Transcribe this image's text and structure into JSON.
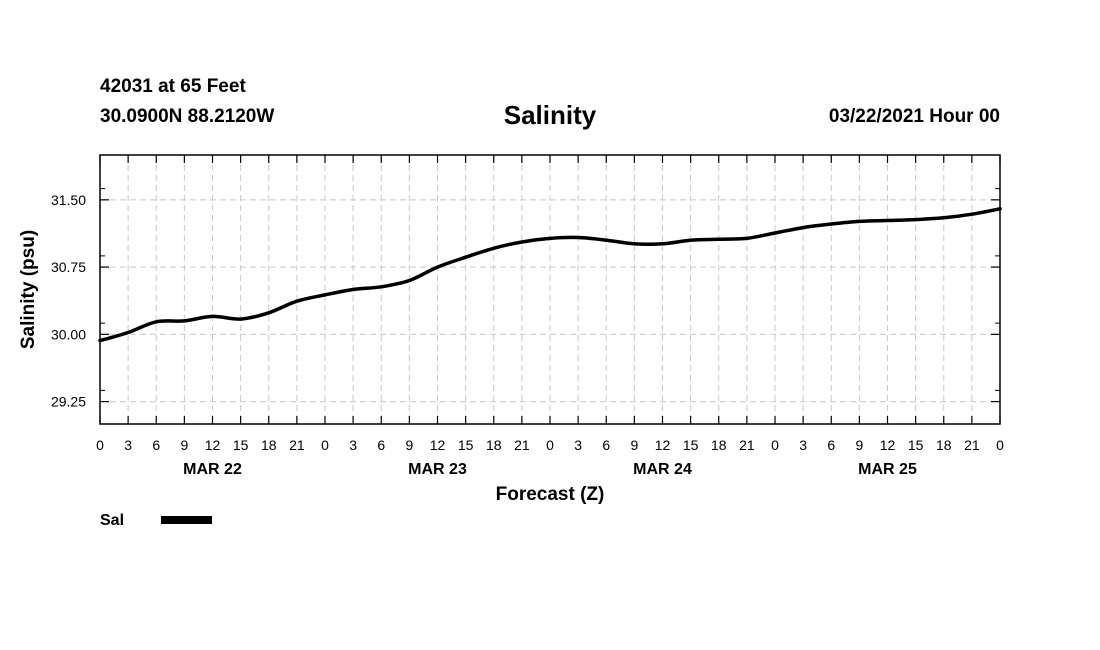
{
  "header": {
    "station": "42031 at 65 Feet",
    "coords": "30.0900N 88.2120W",
    "title": "Salinity",
    "datetime": "03/22/2021 Hour 00"
  },
  "chart_data": {
    "type": "line",
    "title": "Salinity",
    "xlabel": "Forecast (Z)",
    "ylabel": "Salinity (psu)",
    "ylim": [
      29.0,
      32.0
    ],
    "yticks": [
      29.25,
      30.0,
      30.75,
      31.5
    ],
    "yticklabels": [
      "29.25",
      "30.00",
      "30.75",
      "31.50"
    ],
    "xlim": [
      0,
      96
    ],
    "xticklabels": [
      "0",
      "3",
      "6",
      "9",
      "12",
      "15",
      "18",
      "21",
      "0",
      "3",
      "6",
      "9",
      "12",
      "15",
      "18",
      "21",
      "0",
      "3",
      "6",
      "9",
      "12",
      "15",
      "18",
      "21",
      "0",
      "3",
      "6",
      "9",
      "12",
      "15",
      "18",
      "21",
      "0"
    ],
    "day_labels": [
      {
        "label": "MAR 22",
        "hour": 12
      },
      {
        "label": "MAR 23",
        "hour": 36
      },
      {
        "label": "MAR 24",
        "hour": 60
      },
      {
        "label": "MAR 25",
        "hour": 84
      }
    ],
    "grid": true,
    "legend_position": "bottom-left",
    "series": [
      {
        "name": "Sal",
        "color": "#000000",
        "x": [
          0,
          3,
          6,
          9,
          12,
          15,
          18,
          21,
          24,
          27,
          30,
          33,
          36,
          39,
          42,
          45,
          48,
          51,
          54,
          57,
          60,
          63,
          66,
          69,
          72,
          75,
          78,
          81,
          84,
          87,
          90,
          93,
          96
        ],
        "values": [
          29.93,
          30.02,
          30.14,
          30.15,
          30.2,
          30.17,
          30.24,
          30.37,
          30.44,
          30.5,
          30.53,
          30.6,
          30.75,
          30.86,
          30.96,
          31.03,
          31.07,
          31.08,
          31.05,
          31.01,
          31.01,
          31.05,
          31.06,
          31.07,
          31.13,
          31.19,
          31.23,
          31.26,
          31.27,
          31.28,
          31.3,
          31.34,
          31.4
        ]
      }
    ]
  }
}
